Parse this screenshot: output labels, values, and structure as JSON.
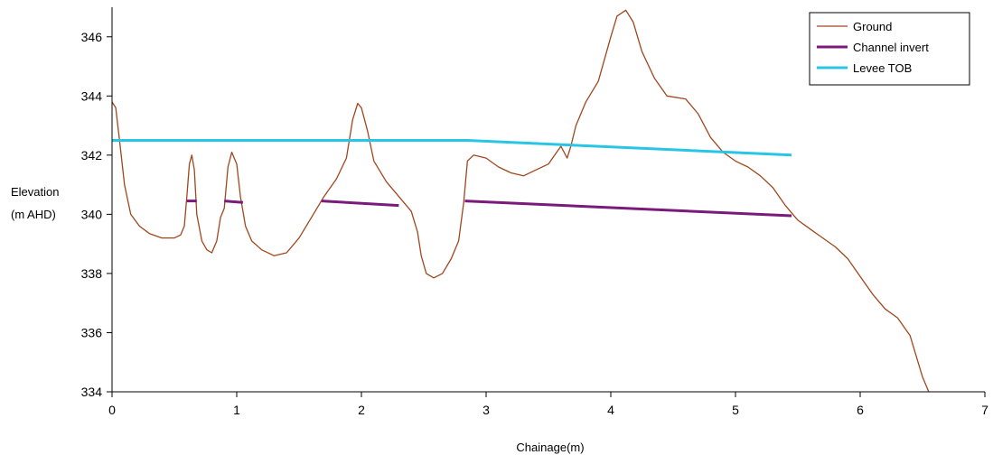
{
  "chart_data": {
    "type": "line",
    "xlabel": "Chainage(m)",
    "ylabel": [
      "Elevation",
      "(m AHD)"
    ],
    "xlim": [
      0,
      7
    ],
    "ylim": [
      334,
      347
    ],
    "x_ticks": [
      0,
      1,
      2,
      3,
      4,
      5,
      6,
      7
    ],
    "y_ticks": [
      334,
      336,
      338,
      340,
      342,
      344,
      346
    ],
    "grid": false,
    "legend_position": "top-right",
    "series": [
      {
        "name": "Ground",
        "color": "#a0461e",
        "segments": [
          [
            [
              0.0,
              343.8
            ],
            [
              0.03,
              343.6
            ],
            [
              0.06,
              342.5
            ],
            [
              0.1,
              341.0
            ],
            [
              0.15,
              340.0
            ],
            [
              0.22,
              339.6
            ],
            [
              0.3,
              339.35
            ],
            [
              0.4,
              339.2
            ],
            [
              0.5,
              339.2
            ],
            [
              0.55,
              339.3
            ],
            [
              0.58,
              339.6
            ],
            [
              0.6,
              340.6
            ],
            [
              0.62,
              341.7
            ],
            [
              0.64,
              342.0
            ],
            [
              0.66,
              341.5
            ],
            [
              0.68,
              340.0
            ],
            [
              0.72,
              339.1
            ],
            [
              0.76,
              338.8
            ],
            [
              0.8,
              338.7
            ],
            [
              0.84,
              339.1
            ],
            [
              0.87,
              339.9
            ],
            [
              0.9,
              340.2
            ],
            [
              0.93,
              341.6
            ],
            [
              0.96,
              342.1
            ],
            [
              1.0,
              341.7
            ],
            [
              1.03,
              340.6
            ],
            [
              1.07,
              339.6
            ],
            [
              1.12,
              339.1
            ],
            [
              1.2,
              338.8
            ],
            [
              1.3,
              338.6
            ],
            [
              1.4,
              338.7
            ],
            [
              1.5,
              339.2
            ],
            [
              1.6,
              339.9
            ],
            [
              1.7,
              340.6
            ],
            [
              1.8,
              341.2
            ],
            [
              1.88,
              341.9
            ],
            [
              1.93,
              343.2
            ],
            [
              1.97,
              343.75
            ],
            [
              2.0,
              343.6
            ],
            [
              2.05,
              342.8
            ],
            [
              2.1,
              341.8
            ],
            [
              2.2,
              341.1
            ],
            [
              2.3,
              340.6
            ],
            [
              2.4,
              340.1
            ],
            [
              2.45,
              339.4
            ],
            [
              2.48,
              338.6
            ],
            [
              2.52,
              338.0
            ],
            [
              2.58,
              337.85
            ],
            [
              2.65,
              338.0
            ],
            [
              2.72,
              338.5
            ],
            [
              2.78,
              339.1
            ],
            [
              2.82,
              340.4
            ],
            [
              2.85,
              341.8
            ],
            [
              2.9,
              342.0
            ],
            [
              3.0,
              341.9
            ],
            [
              3.1,
              341.6
            ],
            [
              3.2,
              341.4
            ],
            [
              3.3,
              341.3
            ],
            [
              3.4,
              341.5
            ],
            [
              3.5,
              341.7
            ],
            [
              3.55,
              342.0
            ],
            [
              3.6,
              342.3
            ],
            [
              3.65,
              341.9
            ],
            [
              3.68,
              342.3
            ],
            [
              3.72,
              343.0
            ],
            [
              3.8,
              343.8
            ],
            [
              3.9,
              344.5
            ],
            [
              4.0,
              346.0
            ],
            [
              4.05,
              346.7
            ],
            [
              4.12,
              346.9
            ],
            [
              4.18,
              346.5
            ],
            [
              4.25,
              345.5
            ],
            [
              4.35,
              344.6
            ],
            [
              4.45,
              344.0
            ],
            [
              4.6,
              343.9
            ],
            [
              4.7,
              343.4
            ],
            [
              4.8,
              342.6
            ],
            [
              4.9,
              342.1
            ],
            [
              5.0,
              341.8
            ],
            [
              5.1,
              341.6
            ],
            [
              5.2,
              341.3
            ],
            [
              5.3,
              340.9
            ],
            [
              5.4,
              340.3
            ],
            [
              5.5,
              339.8
            ],
            [
              5.6,
              339.5
            ],
            [
              5.7,
              339.2
            ],
            [
              5.8,
              338.9
            ],
            [
              5.9,
              338.5
            ],
            [
              6.0,
              337.9
            ],
            [
              6.1,
              337.3
            ],
            [
              6.2,
              336.8
            ],
            [
              6.3,
              336.5
            ],
            [
              6.4,
              335.9
            ],
            [
              6.45,
              335.2
            ],
            [
              6.5,
              334.5
            ],
            [
              6.55,
              334.0
            ]
          ]
        ]
      },
      {
        "name": "Channel invert",
        "color": "#7a1a7a",
        "segments": [
          [
            [
              0.6,
              340.45
            ],
            [
              0.68,
              340.45
            ]
          ],
          [
            [
              0.9,
              340.45
            ],
            [
              1.05,
              340.4
            ]
          ],
          [
            [
              1.68,
              340.45
            ],
            [
              2.3,
              340.3
            ]
          ],
          [
            [
              2.83,
              340.45
            ],
            [
              5.45,
              339.95
            ]
          ]
        ]
      },
      {
        "name": "Levee TOB",
        "color": "#29c5e6",
        "segments": [
          [
            [
              0.0,
              342.5
            ],
            [
              2.85,
              342.5
            ],
            [
              5.45,
              342.0
            ]
          ]
        ]
      }
    ]
  }
}
